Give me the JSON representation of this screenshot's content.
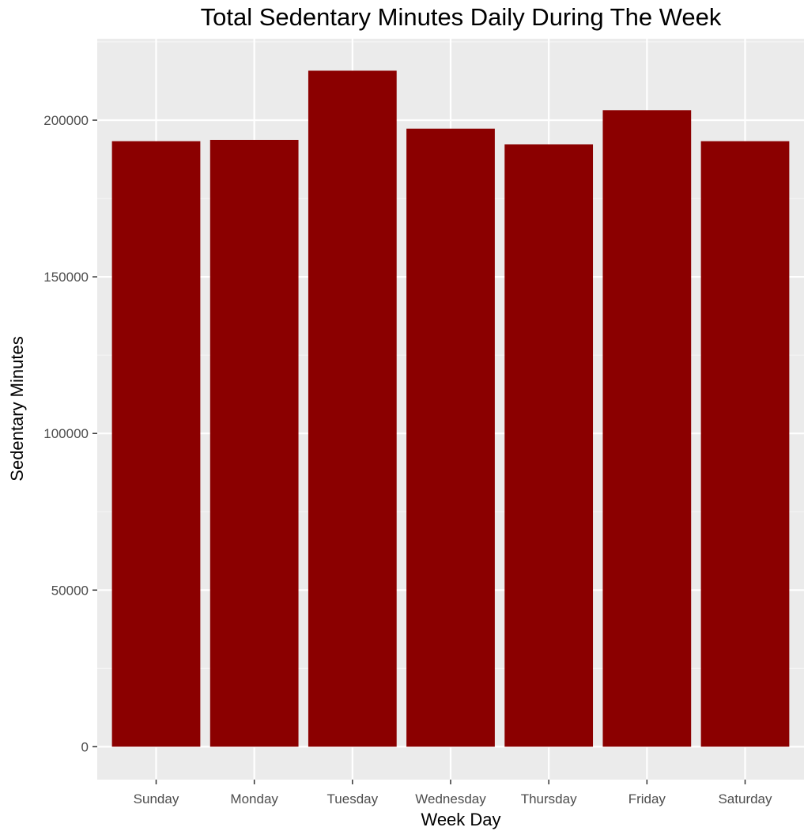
{
  "chart_data": {
    "type": "bar",
    "title": "Total Sedentary Minutes Daily During The Week",
    "xlabel": "Week Day",
    "ylabel": "Sedentary Minutes",
    "categories": [
      "Sunday",
      "Monday",
      "Tuesday",
      "Wednesday",
      "Thursday",
      "Friday",
      "Saturday"
    ],
    "values": [
      193300,
      193700,
      215800,
      197300,
      192300,
      203200,
      193300
    ],
    "yticks": [
      0,
      50000,
      100000,
      150000,
      200000
    ],
    "ytick_labels": [
      "0",
      "50000",
      "100000",
      "150000",
      "200000"
    ],
    "ylim": [
      -10500,
      226000
    ],
    "grid": true,
    "legend": "none",
    "colors": {
      "bar": "#8b0000",
      "panel": "#ebebeb",
      "grid_major": "#ffffff",
      "grid_minor": "#f5f5f5",
      "tick_label": "#4d4d4d"
    }
  }
}
